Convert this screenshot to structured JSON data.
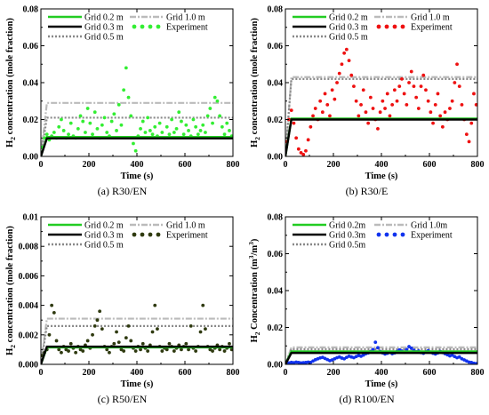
{
  "chart_data": [
    {
      "type": "line",
      "caption": "(a) R30/EN",
      "xlabel": "Time (s)",
      "ylabel_parts": [
        "H",
        "2",
        " concentration (mole fraction)"
      ],
      "xlim": [
        0,
        800
      ],
      "ylim": [
        0,
        0.08
      ],
      "x_ticks": [
        0,
        200,
        400,
        600,
        800
      ],
      "y_ticks": [
        0.0,
        0.02,
        0.04,
        0.06,
        0.08
      ],
      "y_tick_labels": [
        "0.00",
        "0.02",
        "0.04",
        "0.06",
        "0.08"
      ],
      "legend_position": "top",
      "series": [
        {
          "name": "Grid 0.2 m",
          "style": "solid",
          "color": "#22cc22",
          "x": [
            0,
            25,
            800
          ],
          "values": [
            0.0,
            0.0105,
            0.0105
          ]
        },
        {
          "name": "Grid 0.3 m",
          "style": "solid",
          "color": "#000000",
          "x": [
            0,
            25,
            800
          ],
          "values": [
            0.0,
            0.0098,
            0.0098
          ]
        },
        {
          "name": "Grid 0.5 m",
          "style": "dotted",
          "color": "#888888",
          "x": [
            0,
            25,
            800
          ],
          "values": [
            0.0,
            0.021,
            0.021
          ]
        },
        {
          "name": "Grid 1.0 m",
          "style": "dashdot",
          "color": "#bbbbbb",
          "x": [
            0,
            25,
            800
          ],
          "values": [
            0.0,
            0.029,
            0.029
          ]
        },
        {
          "name": "Experiment",
          "style": "points",
          "color": "#33ee33",
          "x": [
            5,
            15,
            25,
            35,
            45,
            55,
            65,
            75,
            85,
            95,
            105,
            115,
            125,
            135,
            145,
            155,
            165,
            175,
            185,
            195,
            205,
            215,
            225,
            235,
            245,
            255,
            265,
            275,
            285,
            295,
            305,
            315,
            325,
            335,
            345,
            355,
            365,
            375,
            385,
            395,
            405,
            415,
            425,
            435,
            445,
            455,
            465,
            475,
            485,
            495,
            505,
            515,
            525,
            535,
            545,
            555,
            565,
            575,
            585,
            595,
            605,
            615,
            625,
            635,
            645,
            655,
            665,
            675,
            685,
            695,
            705,
            715,
            725,
            735,
            745,
            755,
            765,
            775,
            785,
            795
          ],
          "values": [
            0.005,
            0.01,
            0.012,
            0.009,
            0.011,
            0.013,
            0.01,
            0.016,
            0.02,
            0.014,
            0.01,
            0.012,
            0.018,
            0.011,
            0.01,
            0.015,
            0.022,
            0.019,
            0.013,
            0.026,
            0.018,
            0.012,
            0.024,
            0.015,
            0.01,
            0.017,
            0.021,
            0.013,
            0.011,
            0.019,
            0.023,
            0.014,
            0.028,
            0.017,
            0.036,
            0.048,
            0.032,
            0.022,
            0.007,
            0.003,
            0.011,
            0.015,
            0.019,
            0.013,
            0.021,
            0.014,
            0.012,
            0.016,
            0.011,
            0.018,
            0.013,
            0.01,
            0.016,
            0.012,
            0.02,
            0.013,
            0.015,
            0.024,
            0.019,
            0.012,
            0.017,
            0.014,
            0.011,
            0.02,
            0.016,
            0.012,
            0.014,
            0.017,
            0.013,
            0.022,
            0.026,
            0.018,
            0.032,
            0.03,
            0.022,
            0.016,
            0.012,
            0.018,
            0.014,
            0.011
          ]
        }
      ]
    },
    {
      "type": "line",
      "caption": "(b) R30/E",
      "xlabel": "Time (s)",
      "ylabel_parts": [
        "H",
        "2",
        " concentration (mole fraction)"
      ],
      "xlim": [
        0,
        800
      ],
      "ylim": [
        0,
        0.08
      ],
      "x_ticks": [
        0,
        200,
        400,
        600,
        800
      ],
      "y_ticks": [
        0.0,
        0.02,
        0.04,
        0.06,
        0.08
      ],
      "y_tick_labels": [
        "0.00",
        "0.02",
        "0.04",
        "0.06",
        "0.08"
      ],
      "legend_position": "top",
      "series": [
        {
          "name": "Grid 0.2 m",
          "style": "solid",
          "color": "#22cc22",
          "x": [
            0,
            25,
            800
          ],
          "values": [
            0.0,
            0.0205,
            0.0205
          ]
        },
        {
          "name": "Grid 0.3 m",
          "style": "solid",
          "color": "#000000",
          "x": [
            0,
            25,
            800
          ],
          "values": [
            0.0,
            0.02,
            0.02
          ]
        },
        {
          "name": "Grid 0.5 m",
          "style": "dotted",
          "color": "#888888",
          "x": [
            0,
            25,
            800
          ],
          "values": [
            0.0,
            0.042,
            0.042
          ]
        },
        {
          "name": "Grid 1.0 m",
          "style": "dashdot",
          "color": "#bbbbbb",
          "x": [
            0,
            25,
            800
          ],
          "values": [
            0.0,
            0.043,
            0.043
          ]
        },
        {
          "name": "Experiment",
          "style": "points",
          "color": "#ee1111",
          "x": [
            5,
            15,
            25,
            35,
            45,
            55,
            65,
            75,
            85,
            95,
            105,
            115,
            125,
            135,
            145,
            155,
            165,
            175,
            185,
            195,
            205,
            215,
            225,
            235,
            245,
            255,
            265,
            275,
            285,
            295,
            305,
            315,
            325,
            335,
            345,
            355,
            365,
            375,
            385,
            395,
            405,
            415,
            425,
            435,
            445,
            455,
            465,
            475,
            485,
            495,
            505,
            515,
            525,
            535,
            545,
            555,
            565,
            575,
            585,
            595,
            605,
            615,
            625,
            635,
            645,
            655,
            665,
            675,
            685,
            695,
            705,
            715,
            725,
            735,
            745,
            755,
            765,
            775,
            785,
            795
          ],
          "values": [
            0.008,
            0.02,
            0.025,
            0.018,
            0.01,
            0.004,
            0.002,
            0.001,
            0.003,
            0.009,
            0.016,
            0.022,
            0.026,
            0.02,
            0.03,
            0.024,
            0.034,
            0.028,
            0.022,
            0.036,
            0.031,
            0.04,
            0.045,
            0.05,
            0.056,
            0.058,
            0.052,
            0.044,
            0.038,
            0.03,
            0.022,
            0.028,
            0.036,
            0.024,
            0.018,
            0.032,
            0.026,
            0.02,
            0.015,
            0.024,
            0.03,
            0.026,
            0.034,
            0.022,
            0.028,
            0.036,
            0.03,
            0.038,
            0.042,
            0.034,
            0.028,
            0.04,
            0.046,
            0.038,
            0.032,
            0.026,
            0.038,
            0.044,
            0.036,
            0.03,
            0.024,
            0.018,
            0.028,
            0.034,
            0.022,
            0.016,
            0.024,
            0.02,
            0.026,
            0.03,
            0.04,
            0.05,
            0.038,
            0.028,
            0.02,
            0.012,
            0.008,
            0.018,
            0.034,
            0.028
          ]
        }
      ]
    },
    {
      "type": "line",
      "caption": "(c) R50/EN",
      "xlabel": "Time (s)",
      "ylabel_parts": [
        "H",
        "2",
        " concentration (mole fraction)"
      ],
      "xlim": [
        0,
        800
      ],
      "ylim": [
        0,
        0.01
      ],
      "x_ticks": [
        0,
        200,
        400,
        600,
        800
      ],
      "y_ticks": [
        0.0,
        0.002,
        0.004,
        0.006,
        0.008,
        0.01
      ],
      "y_tick_labels": [
        "0.000",
        "0.002",
        "0.004",
        "0.006",
        "0.008",
        "0.01"
      ],
      "legend_position": "top",
      "series": [
        {
          "name": "Grid 0.2 m",
          "style": "solid",
          "color": "#22cc22",
          "x": [
            0,
            25,
            800
          ],
          "values": [
            0.0,
            0.00115,
            0.00115
          ]
        },
        {
          "name": "Grid 0.3 m",
          "style": "solid",
          "color": "#000000",
          "x": [
            0,
            25,
            800
          ],
          "values": [
            0.0,
            0.0012,
            0.0012
          ]
        },
        {
          "name": "Grid 0.5 m",
          "style": "dotted",
          "color": "#888888",
          "x": [
            0,
            25,
            800
          ],
          "values": [
            0.0,
            0.0026,
            0.0026
          ]
        },
        {
          "name": "Grid 1.0 m",
          "style": "dashdot",
          "color": "#bbbbbb",
          "x": [
            0,
            25,
            800
          ],
          "values": [
            0.0,
            0.0031,
            0.0031
          ]
        },
        {
          "name": "Experiment",
          "style": "points",
          "color": "#2f3a10",
          "x": [
            5,
            15,
            25,
            35,
            45,
            55,
            65,
            75,
            85,
            95,
            105,
            115,
            125,
            135,
            145,
            155,
            165,
            175,
            185,
            195,
            205,
            215,
            225,
            235,
            245,
            255,
            265,
            275,
            285,
            295,
            305,
            315,
            325,
            335,
            345,
            355,
            365,
            375,
            385,
            395,
            405,
            415,
            425,
            435,
            445,
            455,
            465,
            475,
            485,
            495,
            505,
            515,
            525,
            535,
            545,
            555,
            565,
            575,
            585,
            595,
            605,
            615,
            625,
            635,
            645,
            655,
            665,
            675,
            685,
            695,
            705,
            715,
            725,
            735,
            745,
            755,
            765,
            775,
            785,
            795
          ],
          "values": [
            0.0006,
            0.0008,
            0.001,
            0.002,
            0.004,
            0.0035,
            0.0016,
            0.001,
            0.0008,
            0.0012,
            0.001,
            0.0009,
            0.0014,
            0.0011,
            0.0008,
            0.0012,
            0.001,
            0.0009,
            0.0013,
            0.0016,
            0.0011,
            0.002,
            0.0026,
            0.003,
            0.0036,
            0.0024,
            0.0012,
            0.001,
            0.0008,
            0.0012,
            0.0014,
            0.0022,
            0.0015,
            0.001,
            0.0009,
            0.0018,
            0.0026,
            0.0016,
            0.0011,
            0.0009,
            0.0012,
            0.001,
            0.0014,
            0.0011,
            0.0009,
            0.0013,
            0.0022,
            0.004,
            0.0024,
            0.0012,
            0.0009,
            0.0011,
            0.001,
            0.0014,
            0.0012,
            0.0009,
            0.0011,
            0.0013,
            0.001,
            0.0012,
            0.0014,
            0.001,
            0.0026,
            0.0011,
            0.0009,
            0.0012,
            0.0022,
            0.004,
            0.0024,
            0.0012,
            0.001,
            0.0009,
            0.0011,
            0.0013,
            0.001,
            0.0012,
            0.0009,
            0.0011,
            0.0014,
            0.001
          ]
        }
      ]
    },
    {
      "type": "line",
      "caption": "(d) R100/EN",
      "xlabel": "Time (s)",
      "ylabel_parts": [
        "H",
        "2",
        " Concentration (m",
        "3",
        "/m",
        "3",
        ")"
      ],
      "xlim": [
        0,
        800
      ],
      "ylim": [
        0,
        0.08
      ],
      "x_ticks": [
        0,
        200,
        400,
        600,
        800
      ],
      "y_ticks": [
        0.0,
        0.02,
        0.04,
        0.06,
        0.08
      ],
      "y_tick_labels": [
        "0.00",
        "0.02",
        "0.04",
        "0.06",
        "0.08"
      ],
      "legend_position": "top",
      "series": [
        {
          "name": "Grid 0.2m",
          "style": "solid",
          "color": "#22cc22",
          "x": [
            0,
            25,
            800
          ],
          "values": [
            0.0,
            0.007,
            0.007
          ]
        },
        {
          "name": "Grid 0.3m",
          "style": "solid",
          "color": "#000000",
          "x": [
            0,
            25,
            800
          ],
          "values": [
            0.0,
            0.0062,
            0.0062
          ]
        },
        {
          "name": "Grid 0.5m",
          "style": "dotted",
          "color": "#888888",
          "x": [
            0,
            25,
            800
          ],
          "values": [
            0.0,
            0.0082,
            0.0082
          ]
        },
        {
          "name": "Grid 1.0m",
          "style": "dashdot",
          "color": "#bbbbbb",
          "x": [
            0,
            25,
            800
          ],
          "values": [
            0.0,
            0.0092,
            0.0092
          ]
        },
        {
          "name": "Experiment",
          "style": "points",
          "color": "#1133ee",
          "x": [
            5,
            15,
            25,
            35,
            45,
            55,
            65,
            75,
            85,
            95,
            105,
            115,
            125,
            135,
            145,
            155,
            165,
            175,
            185,
            195,
            205,
            215,
            225,
            235,
            245,
            255,
            265,
            275,
            285,
            295,
            305,
            315,
            325,
            335,
            345,
            355,
            365,
            375,
            385,
            395,
            405,
            415,
            425,
            435,
            445,
            455,
            465,
            475,
            485,
            495,
            505,
            515,
            525,
            535,
            545,
            555,
            565,
            575,
            585,
            595,
            605,
            615,
            625,
            635,
            645,
            655,
            665,
            675,
            685,
            695,
            705,
            715,
            725,
            735,
            745,
            755,
            765,
            775,
            785,
            795
          ],
          "values": [
            0.001,
            0.0008,
            0.0011,
            0.0009,
            0.0012,
            0.001,
            0.0008,
            0.0009,
            0.001,
            0.0012,
            0.0011,
            0.0018,
            0.0025,
            0.003,
            0.0035,
            0.0038,
            0.0032,
            0.0026,
            0.002,
            0.0024,
            0.003,
            0.0036,
            0.004,
            0.0034,
            0.003,
            0.0038,
            0.0044,
            0.004,
            0.0036,
            0.0042,
            0.0048,
            0.0044,
            0.005,
            0.0058,
            0.0062,
            0.007,
            0.008,
            0.012,
            0.009,
            0.007,
            0.0062,
            0.0056,
            0.006,
            0.0066,
            0.0058,
            0.0062,
            0.007,
            0.0078,
            0.0072,
            0.0066,
            0.008,
            0.0096,
            0.0088,
            0.0076,
            0.0068,
            0.0072,
            0.0064,
            0.006,
            0.0068,
            0.0074,
            0.0066,
            0.006,
            0.0056,
            0.0062,
            0.007,
            0.0064,
            0.0058,
            0.0052,
            0.0046,
            0.005,
            0.0042,
            0.0036,
            0.004,
            0.003,
            0.0024,
            0.0018,
            0.0012,
            0.001,
            0.0006,
            0.0004
          ]
        }
      ]
    }
  ]
}
